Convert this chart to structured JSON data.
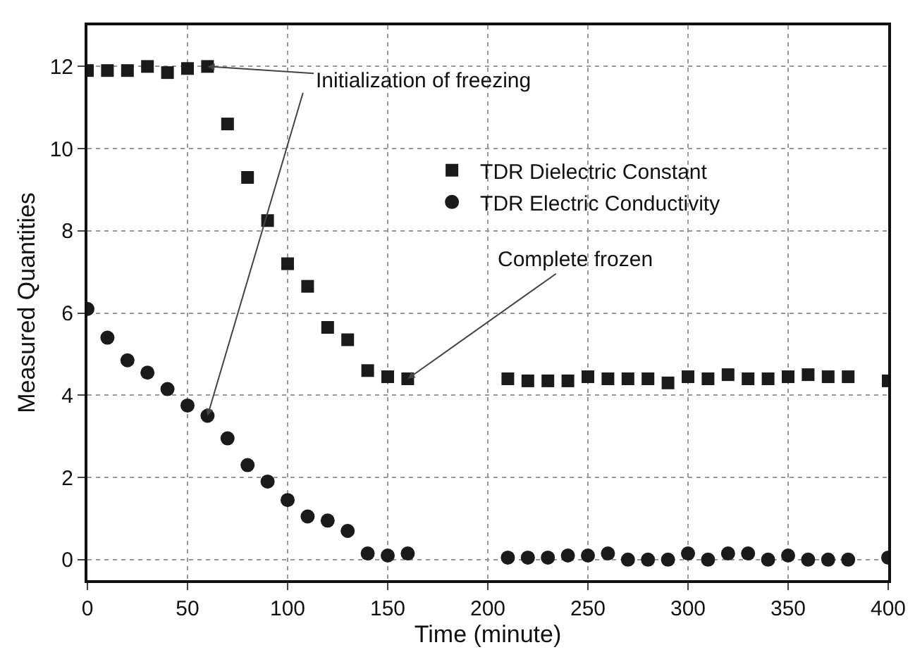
{
  "chart_data": {
    "type": "scatter",
    "xlabel": "Time (minute)",
    "ylabel": "Measured Quantities",
    "xlim": [
      0,
      400
    ],
    "ylim": [
      -0.5,
      13
    ],
    "xticks": [
      0,
      50,
      100,
      150,
      200,
      250,
      300,
      350,
      400
    ],
    "yticks": [
      0,
      2,
      4,
      6,
      8,
      10,
      12
    ],
    "grid": true,
    "line_style": "dotted",
    "legend": "top right",
    "series": [
      {
        "name": "TDR Dielectric Constant",
        "color": "#1a1a1a",
        "marker": "square",
        "x": [
          0,
          10,
          20,
          30,
          40,
          50,
          60,
          70,
          80,
          90,
          100,
          110,
          120,
          130,
          140,
          150,
          160,
          210,
          220,
          230,
          240,
          250,
          260,
          270,
          280,
          290,
          300,
          310,
          320,
          330,
          340,
          350,
          360,
          370,
          380,
          400
        ],
        "values": [
          11.9,
          11.9,
          11.9,
          12,
          11.85,
          11.95,
          12,
          10.6,
          9.3,
          8.25,
          7.2,
          6.65,
          5.65,
          5.35,
          4.6,
          4.45,
          4.4,
          4.4,
          4.35,
          4.35,
          4.35,
          4.45,
          4.4,
          4.4,
          4.4,
          4.3,
          4.45,
          4.4,
          4.5,
          4.4,
          4.4,
          4.45,
          4.5,
          4.45,
          4.45,
          4.35
        ]
      },
      {
        "name": "TDR Electric Conductivity",
        "color": "#1a1a1a",
        "marker": "circle",
        "x": [
          0,
          10,
          20,
          30,
          40,
          50,
          60,
          70,
          80,
          90,
          100,
          110,
          120,
          130,
          140,
          150,
          160,
          210,
          220,
          230,
          240,
          250,
          260,
          270,
          280,
          290,
          300,
          310,
          320,
          330,
          340,
          350,
          360,
          370,
          380,
          400
        ],
        "values": [
          6.1,
          5.4,
          4.85,
          4.55,
          4.15,
          3.75,
          3.5,
          2.95,
          2.3,
          1.9,
          1.45,
          1.05,
          0.95,
          0.7,
          0.15,
          0.1,
          0.15,
          0.05,
          0.05,
          0.05,
          0.1,
          0.1,
          0.15,
          0,
          0,
          0,
          0.15,
          0,
          0.15,
          0.15,
          0,
          0.1,
          0,
          0,
          0,
          0.05
        ]
      }
    ],
    "annotations": [
      {
        "text": "Initialization of freezing",
        "x": 60,
        "y": 12
      },
      {
        "text": "Complete frozen",
        "x": 160,
        "y": 4.4
      }
    ]
  }
}
